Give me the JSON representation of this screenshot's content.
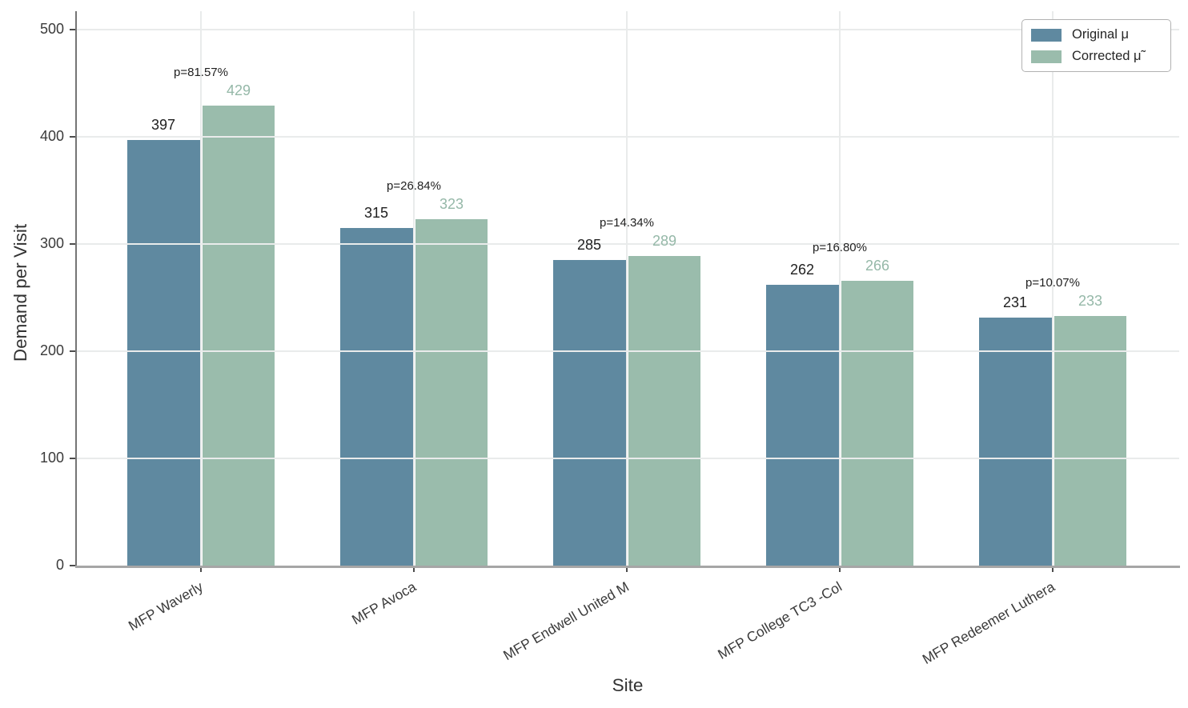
{
  "chart_data": {
    "type": "bar",
    "title": "",
    "xlabel": "Site",
    "ylabel": "Demand per Visit",
    "ylim": [
      0,
      500
    ],
    "yticks": [
      0,
      100,
      200,
      300,
      400,
      500
    ],
    "grid": true,
    "legend_position": "upper-right",
    "categories": [
      "MFP Waverly",
      "MFP Avoca",
      "MFP Endwell United M",
      "MFP College TC3 -Col",
      "MFP Redeemer Luthera"
    ],
    "series": [
      {
        "name": "Original μ",
        "color": "#5f89a0",
        "values": [
          397,
          315,
          285,
          262,
          231
        ]
      },
      {
        "name": "Corrected μ̃",
        "color": "#9abcac",
        "values": [
          429,
          323,
          289,
          266,
          233
        ]
      }
    ],
    "annotations": [
      {
        "category": "MFP Waverly",
        "label": "p=81.57%"
      },
      {
        "category": "MFP Avoca",
        "label": "p=26.84%"
      },
      {
        "category": "MFP Endwell United M",
        "label": "p=14.34%"
      },
      {
        "category": "MFP College TC3 -Col",
        "label": "p=16.80%"
      },
      {
        "category": "MFP Redeemer Luthera",
        "label": "p=10.07%"
      }
    ],
    "colors": {
      "original_bar": "#5f89a0",
      "corrected_bar": "#9abcac",
      "original_value_text": "#1f1f1f",
      "corrected_value_text": "#95b8a8",
      "p_value_text": "#1f1f1f",
      "grid_line": "#e9ebeb",
      "axis_spine_left": "#757575",
      "axis_spine_bottom": "#a6a6a6",
      "tick_mark": "#4d4d4d",
      "tick_text": "#3a3a3a"
    }
  }
}
